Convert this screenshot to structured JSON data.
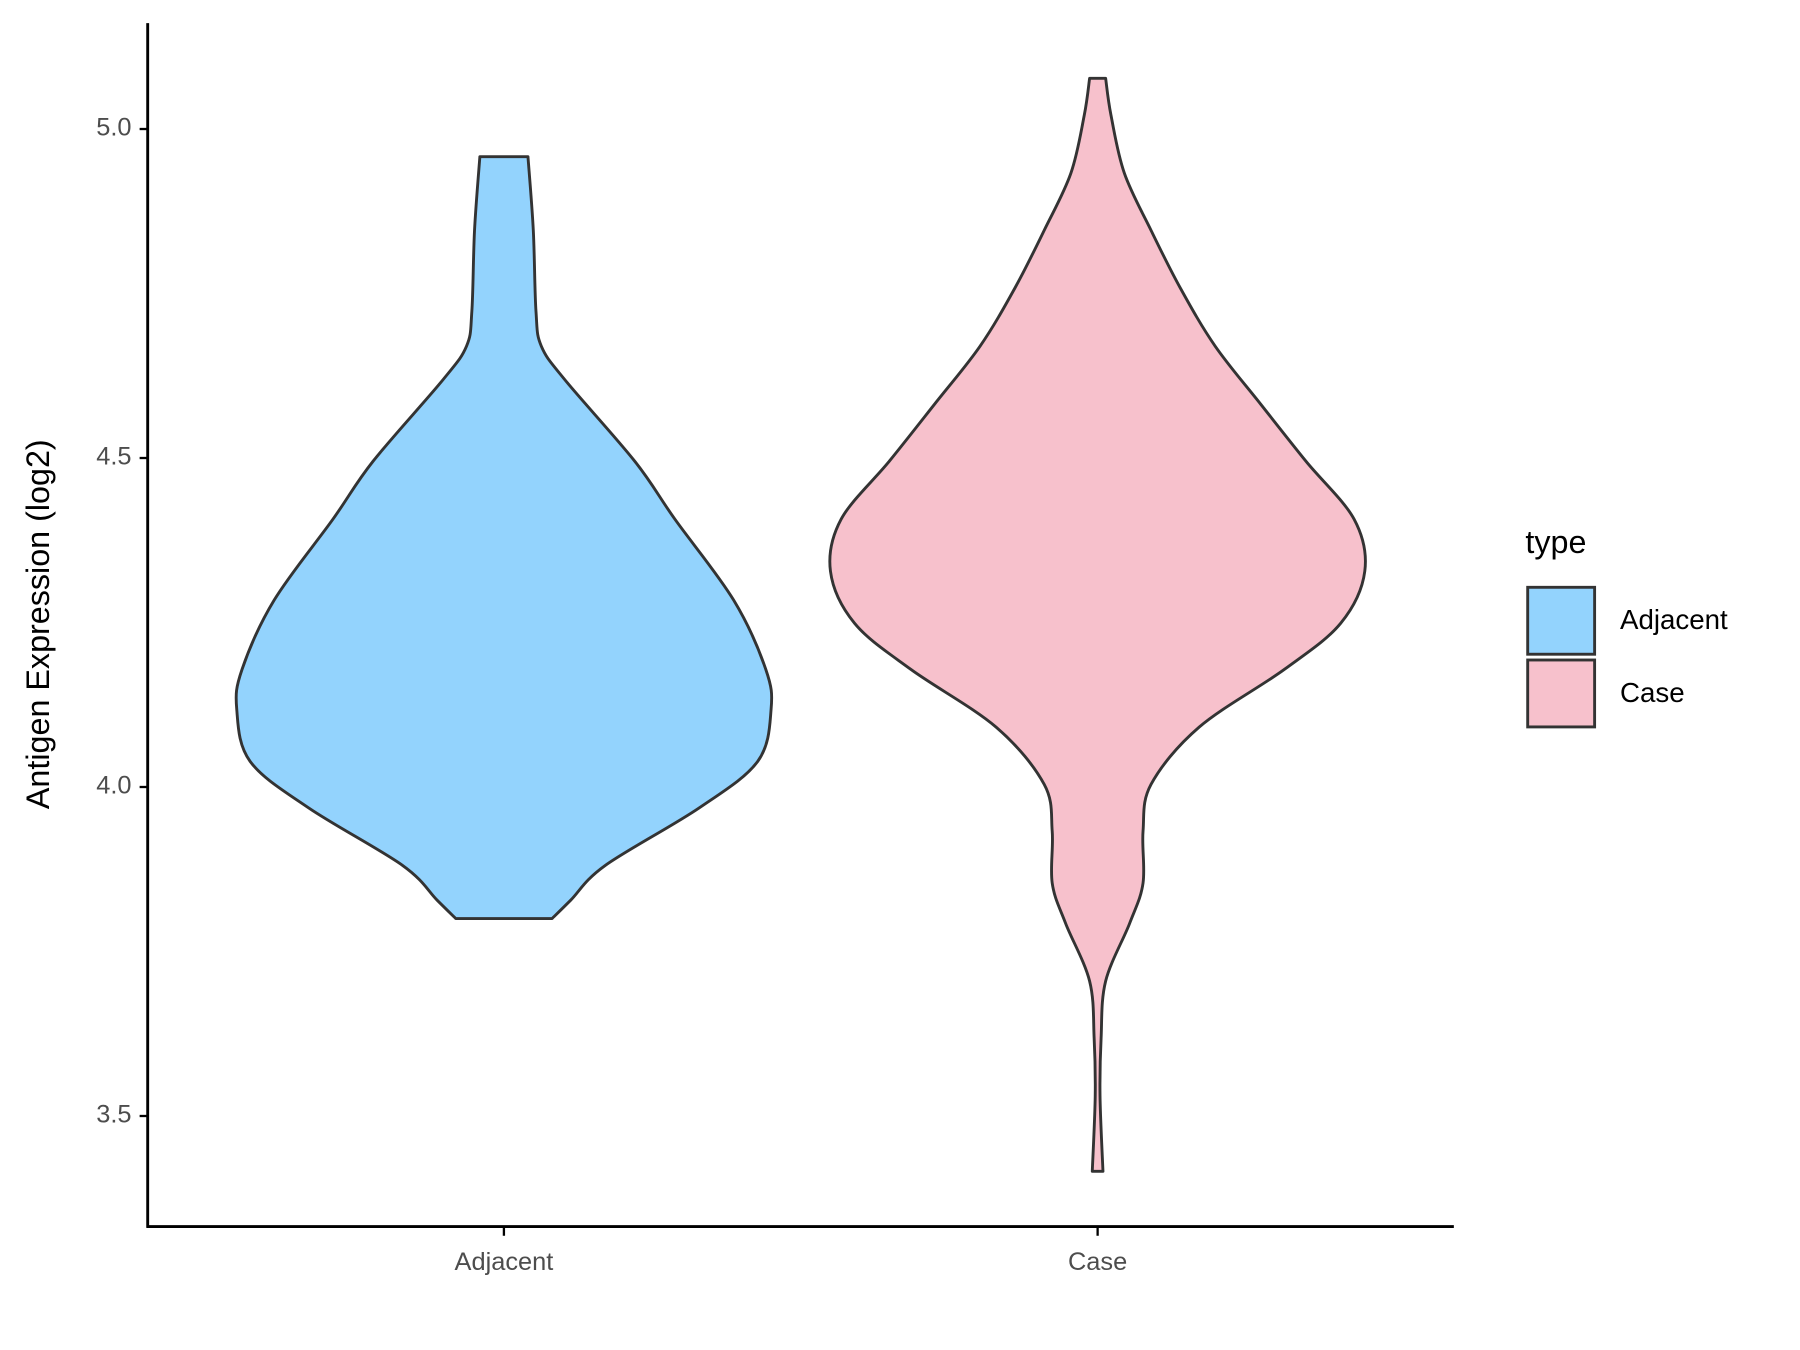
{
  "chart_data": {
    "type": "violin",
    "y_label": "Antigen Expression (log2)",
    "categories": [
      "Adjacent",
      "Case"
    ],
    "ylim": [
      3.332,
      5.161
    ],
    "yticks": [
      {
        "value": 3.5,
        "label": "3.5"
      },
      {
        "value": 4.0,
        "label": "4.0"
      },
      {
        "value": 4.5,
        "label": "4.5"
      },
      {
        "value": 5.0,
        "label": "5.0"
      }
    ],
    "grid": false,
    "legend_title": "type",
    "legend_position": "right",
    "series": [
      {
        "name": "Adjacent",
        "color": "#93d3fd",
        "values": [
          4.958,
          4.846,
          4.723,
          4.67,
          4.618,
          4.495,
          4.407,
          4.284,
          4.179,
          4.118,
          4.039,
          3.968,
          3.881,
          3.828,
          3.8
        ],
        "density": [
          0.09,
          0.11,
          0.12,
          0.14,
          0.23,
          0.49,
          0.64,
          0.86,
          0.98,
          1,
          0.95,
          0.73,
          0.38,
          0.25,
          0.18
        ]
      },
      {
        "name": "Case",
        "color": "#f7c1cc",
        "values": [
          5.077,
          5.021,
          4.933,
          4.846,
          4.758,
          4.67,
          4.582,
          4.495,
          4.407,
          4.328,
          4.249,
          4.179,
          4.091,
          4.004,
          3.933,
          3.854,
          3.793,
          3.705,
          3.618,
          3.53,
          3.416
        ],
        "density": [
          0.03,
          0.05,
          0.1,
          0.2,
          0.31,
          0.44,
          0.61,
          0.78,
          0.96,
          1,
          0.91,
          0.7,
          0.38,
          0.2,
          0.17,
          0.17,
          0.12,
          0.03,
          0.013,
          0.009,
          0.02
        ]
      }
    ]
  }
}
